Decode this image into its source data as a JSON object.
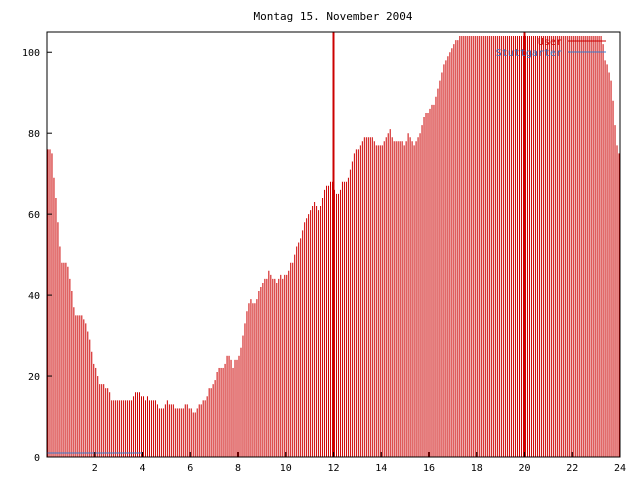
{
  "chart_data": {
    "type": "bar",
    "title": "Montag 15. November 2004",
    "xlabel": "",
    "ylabel": "",
    "xlim": [
      0,
      24
    ],
    "ylim": [
      0,
      105
    ],
    "x_ticks": [
      2,
      4,
      6,
      8,
      10,
      12,
      14,
      16,
      18,
      20,
      22,
      24
    ],
    "y_ticks": [
      0,
      20,
      40,
      60,
      80,
      100
    ],
    "legend_position": "top-right",
    "grid": false,
    "series": [
      {
        "name": "User",
        "color": "#cc0000",
        "samples_per_hour": 12,
        "values": [
          76,
          76,
          75,
          69,
          64,
          58,
          52,
          48,
          48,
          48,
          47,
          44,
          41,
          37,
          35,
          35,
          35,
          35,
          34,
          33,
          31,
          29,
          26,
          23,
          22,
          20,
          18,
          18,
          18,
          17,
          17,
          16,
          14,
          14,
          14,
          14,
          14,
          14,
          14,
          14,
          14,
          14,
          14,
          15,
          16,
          16,
          16,
          15,
          15,
          14,
          15,
          14,
          14,
          14,
          14,
          13,
          12,
          12,
          12,
          13,
          14,
          13,
          13,
          13,
          12,
          12,
          12,
          12,
          12,
          13,
          13,
          12,
          12,
          11,
          11,
          12,
          13,
          13,
          14,
          14,
          15,
          17,
          17,
          18,
          19,
          21,
          22,
          22,
          22,
          23,
          25,
          25,
          24,
          22,
          24,
          24,
          25,
          27,
          30,
          33,
          36,
          38,
          39,
          38,
          38,
          39,
          41,
          42,
          43,
          44,
          44,
          46,
          45,
          44,
          44,
          43,
          44,
          45,
          44,
          45,
          45,
          46,
          48,
          48,
          50,
          52,
          53,
          54,
          56,
          58,
          59,
          60,
          61,
          62,
          63,
          62,
          61,
          62,
          64,
          66,
          67,
          67,
          68,
          68,
          66,
          65,
          65,
          66,
          68,
          68,
          68,
          69,
          71,
          73,
          75,
          76,
          76,
          77,
          78,
          79,
          79,
          79,
          79,
          79,
          78,
          77,
          77,
          77,
          77,
          78,
          79,
          80,
          81,
          79,
          78,
          78,
          78,
          78,
          78,
          77,
          78,
          80,
          79,
          78,
          77,
          78,
          79,
          80,
          82,
          84,
          85,
          85,
          86,
          87,
          87,
          89,
          91,
          93,
          95,
          97,
          98,
          99,
          100,
          101,
          102,
          103,
          103,
          104,
          104,
          104,
          104,
          104,
          104,
          104,
          104,
          104,
          104,
          104,
          104,
          104,
          104,
          104,
          104,
          104,
          104,
          104,
          104,
          104,
          104,
          104,
          104,
          104,
          104,
          104,
          104,
          104,
          104,
          104,
          104,
          104,
          104,
          104,
          104,
          104,
          104,
          104,
          104,
          104,
          104,
          104,
          104,
          104,
          104,
          104,
          104,
          104,
          104,
          104,
          104,
          104,
          104,
          104,
          104,
          104,
          104,
          104,
          104,
          104,
          104,
          104,
          104,
          104,
          104,
          104,
          104,
          104,
          104,
          104,
          104,
          102,
          98,
          97,
          95,
          93,
          88,
          82,
          77,
          75
        ]
      },
      {
        "name": "Stuttgarter",
        "color": "#3a7acb",
        "segments": [
          {
            "x_start": 0,
            "x_end": 4,
            "value": 1
          }
        ]
      }
    ],
    "markers": [
      {
        "x": 12,
        "color": "#cc0000"
      },
      {
        "x": 20,
        "color": "#cc0000"
      }
    ]
  }
}
